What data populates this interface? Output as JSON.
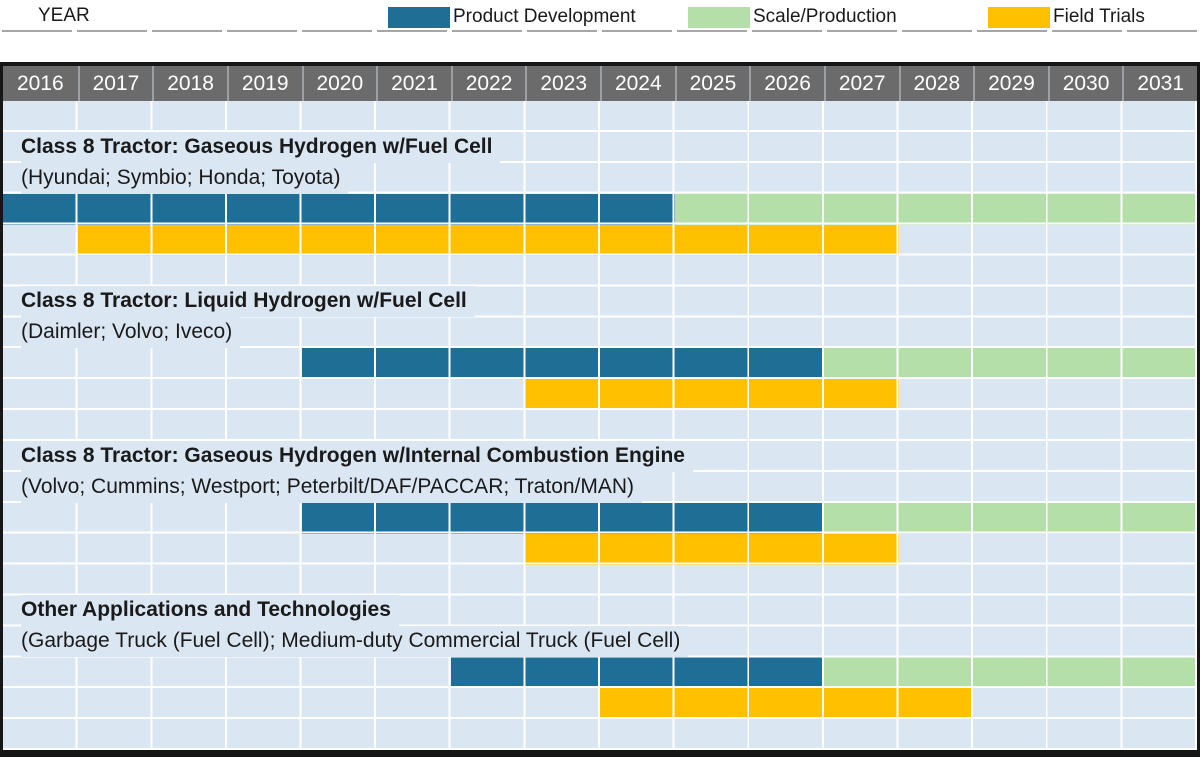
{
  "legend": {
    "items": [
      {
        "key": "product_development",
        "label": "Product Development"
      },
      {
        "key": "scale_production",
        "label": "Scale/Production"
      },
      {
        "key": "field_trials",
        "label": "Field Trials"
      }
    ]
  },
  "timeline": {
    "years": [
      "2016",
      "2017",
      "2018",
      "2019",
      "2020",
      "2021",
      "2022",
      "2023",
      "2024",
      "2025",
      "2026",
      "2027",
      "2028",
      "2029",
      "2030",
      "2031"
    ]
  },
  "chart_data": {
    "type": "gantt",
    "x_axis": {
      "label": "YEAR",
      "start": 2016,
      "end": 2031
    },
    "phases": [
      "Product Development",
      "Scale/Production",
      "Field Trials"
    ],
    "legend_position": "top",
    "grid": true,
    "tasks": [
      {
        "group": "Class 8 Tractor: Gaseous Hydrogen w/Fuel Cell",
        "companies": "(Hyundai; Symbio; Honda; Toyota)",
        "spans": [
          {
            "phase": "product_development",
            "start": 2016,
            "end": 2024
          },
          {
            "phase": "scale_production",
            "start": 2025,
            "end": 2031
          },
          {
            "phase": "field_trials",
            "start": 2017,
            "end": 2027
          }
        ]
      },
      {
        "group": "Class 8 Tractor: Liquid Hydrogen w/Fuel Cell",
        "companies": "(Daimler; Volvo; Iveco)",
        "spans": [
          {
            "phase": "product_development",
            "start": 2020,
            "end": 2026
          },
          {
            "phase": "scale_production",
            "start": 2027,
            "end": 2031
          },
          {
            "phase": "field_trials",
            "start": 2023,
            "end": 2027
          }
        ]
      },
      {
        "group": "Class 8 Tractor: Gaseous Hydrogen w/Internal Combustion Engine",
        "companies": "(Volvo; Cummins; Westport; Peterbilt/DAF/PACCAR; Traton/MAN)",
        "spans": [
          {
            "phase": "product_development",
            "start": 2020,
            "end": 2026
          },
          {
            "phase": "scale_production",
            "start": 2027,
            "end": 2031
          },
          {
            "phase": "field_trials",
            "start": 2023,
            "end": 2027
          }
        ]
      },
      {
        "group": "Other Applications and Technologies",
        "companies": "(Garbage Truck (Fuel Cell); Medium-duty Commercial Truck (Fuel Cell)",
        "spans": [
          {
            "phase": "product_development",
            "start": 2022,
            "end": 2026
          },
          {
            "phase": "scale_production",
            "start": 2027,
            "end": 2031
          },
          {
            "phase": "field_trials",
            "start": 2024,
            "end": 2028
          }
        ]
      }
    ]
  },
  "colors": {
    "product_development": "#1f6e96",
    "scale_production": "#b5dfa9",
    "field_trials": "#ffc000",
    "header_bg": "#6b6b6b",
    "header_text": "#ffffff",
    "header_separator": "#9aa0a6",
    "body_bg": "#dbe6f3",
    "gridline": "#ffffff",
    "axis_rule": "#a6a6a6",
    "table_border": "#161616",
    "text": "#1a1a1a"
  }
}
